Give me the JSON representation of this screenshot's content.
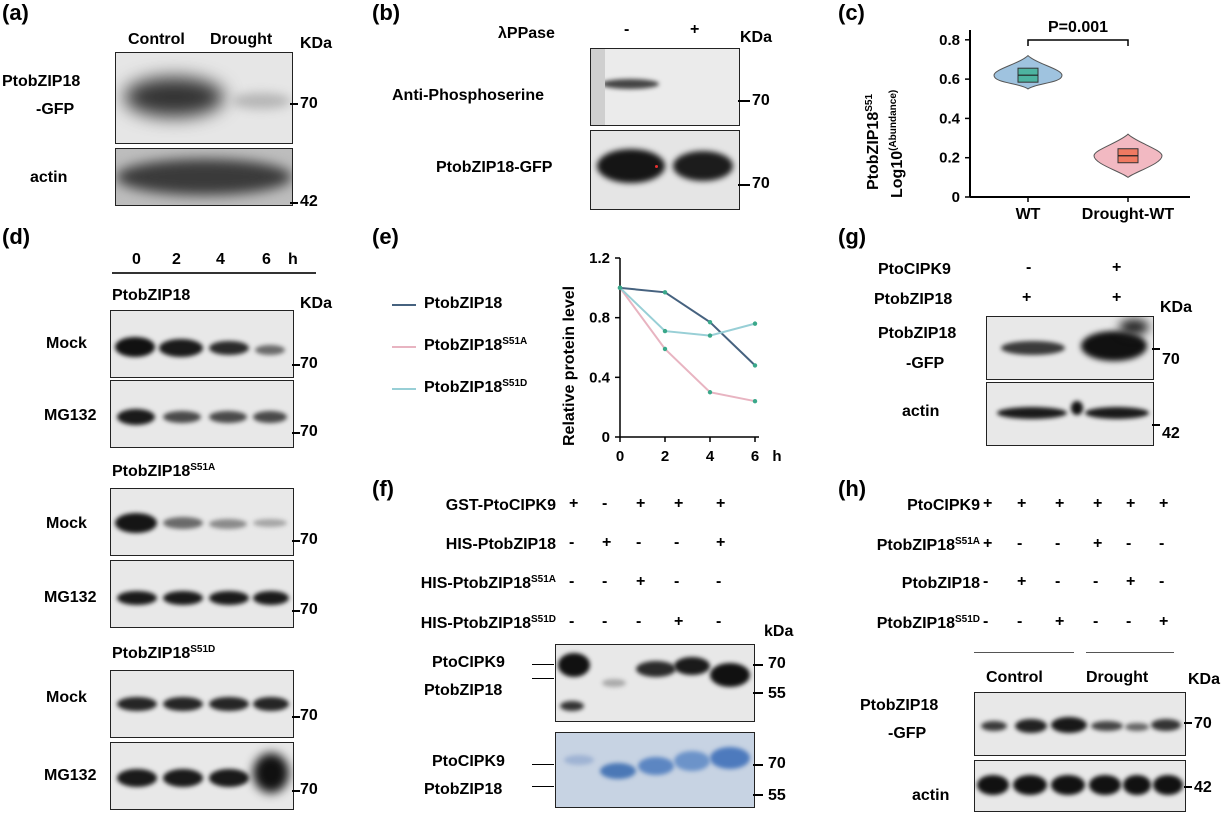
{
  "panels": {
    "a": {
      "label": "(a)",
      "lanes": [
        "Control",
        "Drought"
      ],
      "unit": "KDa",
      "protein": [
        "PtobZIP18",
        "-GFP"
      ],
      "loading": "actin",
      "markers": [
        "70",
        "42"
      ]
    },
    "b": {
      "label": "(b)",
      "treatment": "λPPase",
      "treatment_signs": [
        "-",
        "+"
      ],
      "unit": "KDa",
      "rows": [
        "Anti-Phosphoserine",
        "PtobZIP18-GFP"
      ],
      "markers": [
        "70",
        "70"
      ]
    },
    "c": {
      "label": "(c)"
    },
    "d": {
      "label": "(d)",
      "timepoints": [
        "0",
        "2",
        "4",
        "6"
      ],
      "time_unit": "h",
      "unit": "KDa",
      "groups": [
        {
          "name": "PtobZIP18",
          "sup": ""
        },
        {
          "name": "PtobZIP18",
          "sup": "S51A"
        },
        {
          "name": "PtobZIP18",
          "sup": "S51D"
        }
      ],
      "rows": [
        "Mock",
        "MG132"
      ],
      "marker": "70"
    },
    "e": {
      "label": "(e)"
    },
    "f": {
      "label": "(f)",
      "rows": [
        {
          "name": "GST-PtoCIPK9",
          "sup": "",
          "signs": [
            "+",
            "-",
            "+",
            "+",
            "+"
          ]
        },
        {
          "name": "HIS-PtobZIP18",
          "sup": "",
          "signs": [
            "-",
            "+",
            "-",
            "-",
            "+"
          ]
        },
        {
          "name": "HIS-PtobZIP18",
          "sup": "S51A",
          "signs": [
            "-",
            "-",
            "+",
            "-",
            "-"
          ]
        },
        {
          "name": "HIS-PtobZIP18",
          "sup": "S51D",
          "signs": [
            "-",
            "-",
            "-",
            "+",
            "-"
          ]
        }
      ],
      "unit": "kDa",
      "band_labels": [
        "PtoCIPK9",
        "PtobZIP18"
      ],
      "markers": [
        "70",
        "55"
      ]
    },
    "g": {
      "label": "(g)",
      "rows": [
        {
          "name": "PtoCIPK9",
          "signs": [
            "-",
            "+"
          ]
        },
        {
          "name": "PtobZIP18",
          "signs": [
            "+",
            "+"
          ]
        }
      ],
      "unit": "KDa",
      "blots": [
        "PtobZIP18",
        "-GFP",
        "actin"
      ],
      "markers": [
        "70",
        "42"
      ]
    },
    "h": {
      "label": "(h)",
      "rows": [
        {
          "name": "PtoCIPK9",
          "sup": "",
          "signs": [
            "+",
            "+",
            "+",
            "+",
            "+",
            "+"
          ]
        },
        {
          "name": "PtobZIP18",
          "sup": "S51A",
          "signs": [
            "+",
            "-",
            "-",
            "+",
            "-",
            "-"
          ]
        },
        {
          "name": "PtobZIP18",
          "sup": "",
          "signs": [
            "-",
            "+",
            "-",
            "-",
            "+",
            "-"
          ]
        },
        {
          "name": "PtobZIP18",
          "sup": "S51D",
          "signs": [
            "-",
            "-",
            "+",
            "-",
            "-",
            "+"
          ]
        }
      ],
      "conditions": [
        "Control",
        "Drought"
      ],
      "unit": "KDa",
      "blots": [
        "PtobZIP18",
        "-GFP",
        "actin"
      ],
      "markers": [
        "70",
        "42"
      ]
    }
  },
  "chart_data": [
    {
      "type": "violin",
      "ylabel_line1": "PtobZIP18",
      "ylabel_line1_sup": "S51",
      "ylabel_line2": "Log10",
      "ylabel_line2_sup": "(Abundance)",
      "categories": [
        "WT",
        "Drought-WT"
      ],
      "medians": [
        0.62,
        0.21
      ],
      "ranges": [
        [
          0.55,
          0.72
        ],
        [
          0.1,
          0.32
        ]
      ],
      "colors": [
        "#9fc3df",
        "#f2b9c2"
      ],
      "box_colors": [
        "#4db3a0",
        "#f07a62"
      ],
      "ylim": [
        0,
        0.85
      ],
      "yticks": [
        "0",
        "0.2",
        "0.4",
        "0.6",
        "0.8"
      ],
      "annotation": "P=0.001"
    },
    {
      "type": "line",
      "ylabel": "Relative protein level",
      "x": [
        0,
        2,
        4,
        6
      ],
      "xticks": [
        "0",
        "2",
        "4",
        "6"
      ],
      "xunit": "h",
      "ylim": [
        0,
        1.2
      ],
      "yticks": [
        "0",
        "0.4",
        "0.8",
        "1.2"
      ],
      "series": [
        {
          "name": "PtobZIP18",
          "sup": "",
          "color": "#46627f",
          "values": [
            1.0,
            0.97,
            0.77,
            0.48
          ]
        },
        {
          "name": "PtobZIP18",
          "sup": "S51A",
          "color": "#e8b4c1",
          "values": [
            1.0,
            0.59,
            0.3,
            0.24
          ]
        },
        {
          "name": "PtobZIP18",
          "sup": "S51D",
          "color": "#98cfd6",
          "values": [
            1.0,
            0.71,
            0.68,
            0.76
          ]
        }
      ]
    }
  ]
}
